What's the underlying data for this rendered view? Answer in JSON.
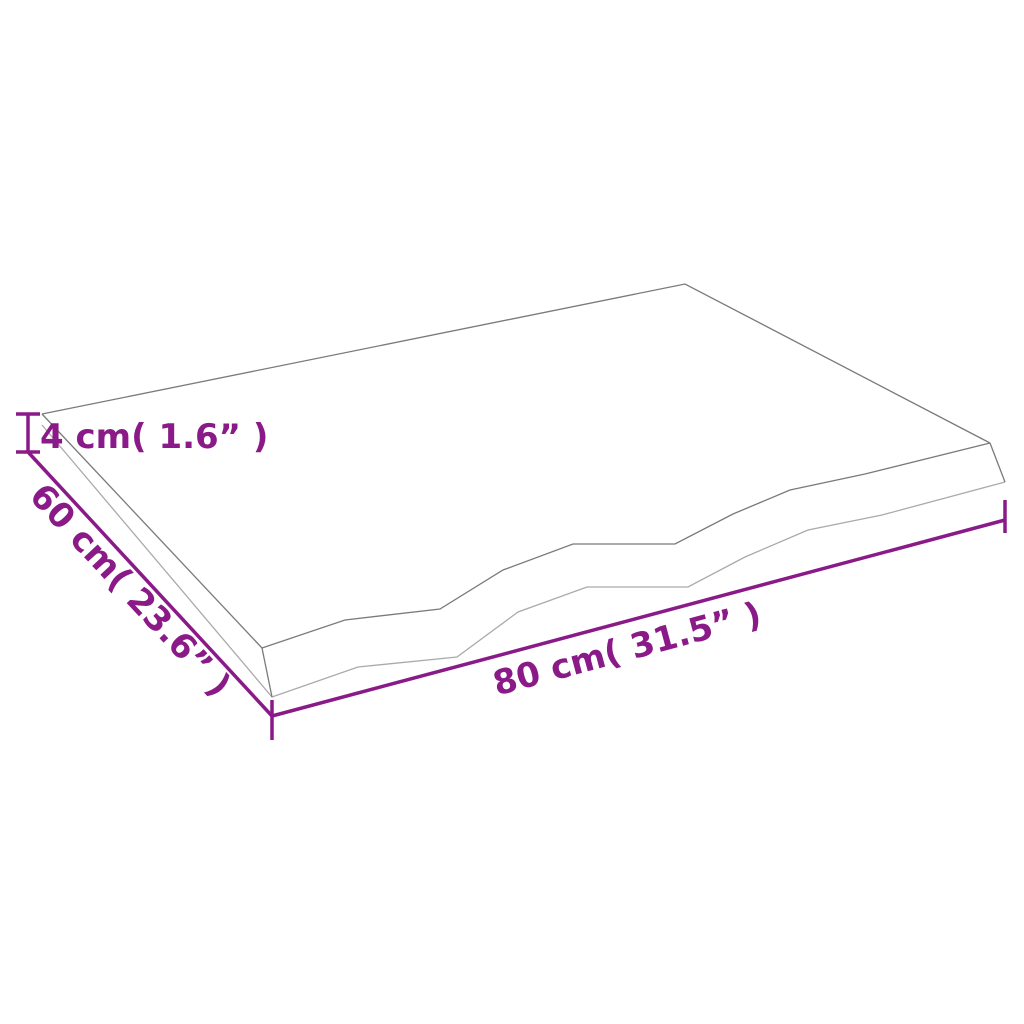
{
  "dimensions": {
    "thickness": "4 cm( 1.6” )",
    "depth": "60 cm( 23.6” )",
    "width": "80 cm( 31.5” )"
  },
  "colors": {
    "dimension": "#8B1A89",
    "outline": "#7a7a7a"
  }
}
